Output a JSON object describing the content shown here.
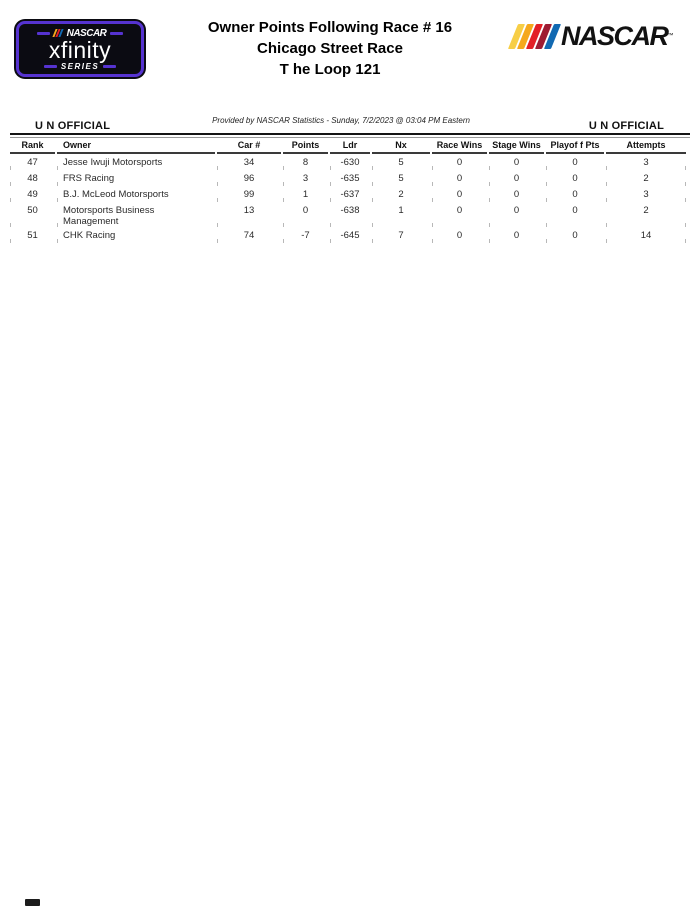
{
  "header": {
    "title_line1": "Owner Points Following Race #  16",
    "title_line2": "Chicago Street Race",
    "title_line3": "T he Loop 121",
    "xfinity_logo": {
      "nascar_text": "NASCAR",
      "series_name": "xfinity",
      "series_label": "SERIES"
    },
    "nascar_logo": {
      "text": "NASCAR",
      "trademark": "™"
    }
  },
  "meta": {
    "provided_by": "Provided by NASCAR Statistics - Sunday, 7/2/2023 @ 03:04 PM Eastern",
    "unofficial_left": "U N OFFICIAL",
    "unofficial_right": "U N OFFICIAL"
  },
  "table": {
    "columns": [
      "Rank",
      "Owner",
      "Car #",
      "Points",
      "Ldr",
      "Nx",
      "Race Wins",
      "Stage Wins",
      "Playof f Pts",
      "Attempts"
    ],
    "rows": [
      {
        "rank": "47",
        "owner": "Jesse Iwuji Motorsports",
        "car": "34",
        "points": "8",
        "ldr": "-630",
        "nx": "5",
        "race_wins": "0",
        "stage_wins": "0",
        "playoff_pts": "0",
        "attempts": "3"
      },
      {
        "rank": "48",
        "owner": "FRS Racing",
        "car": "96",
        "points": "3",
        "ldr": "-635",
        "nx": "5",
        "race_wins": "0",
        "stage_wins": "0",
        "playoff_pts": "0",
        "attempts": "2"
      },
      {
        "rank": "49",
        "owner": "B.J. McLeod Motorsports",
        "car": "99",
        "points": "1",
        "ldr": "-637",
        "nx": "2",
        "race_wins": "0",
        "stage_wins": "0",
        "playoff_pts": "0",
        "attempts": "3"
      },
      {
        "rank": "50",
        "owner": "Motorsports Business Management",
        "car": "13",
        "points": "0",
        "ldr": "-638",
        "nx": "1",
        "race_wins": "0",
        "stage_wins": "0",
        "playoff_pts": "0",
        "attempts": "2"
      },
      {
        "rank": "51",
        "owner": "CHK Racing",
        "car": "74",
        "points": "-7",
        "ldr": "-645",
        "nx": "7",
        "race_wins": "0",
        "stage_wins": "0",
        "playoff_pts": "0",
        "attempts": "14"
      }
    ]
  },
  "colors": {
    "accent_purple": "#5633d1",
    "stripe_yellow_light": "#F7CE46",
    "stripe_yellow": "#F5A81C",
    "stripe_red": "#E31F26",
    "stripe_dark_red": "#9E1B32",
    "stripe_blue": "#1169B2",
    "logo_background": "#0b0b12"
  }
}
